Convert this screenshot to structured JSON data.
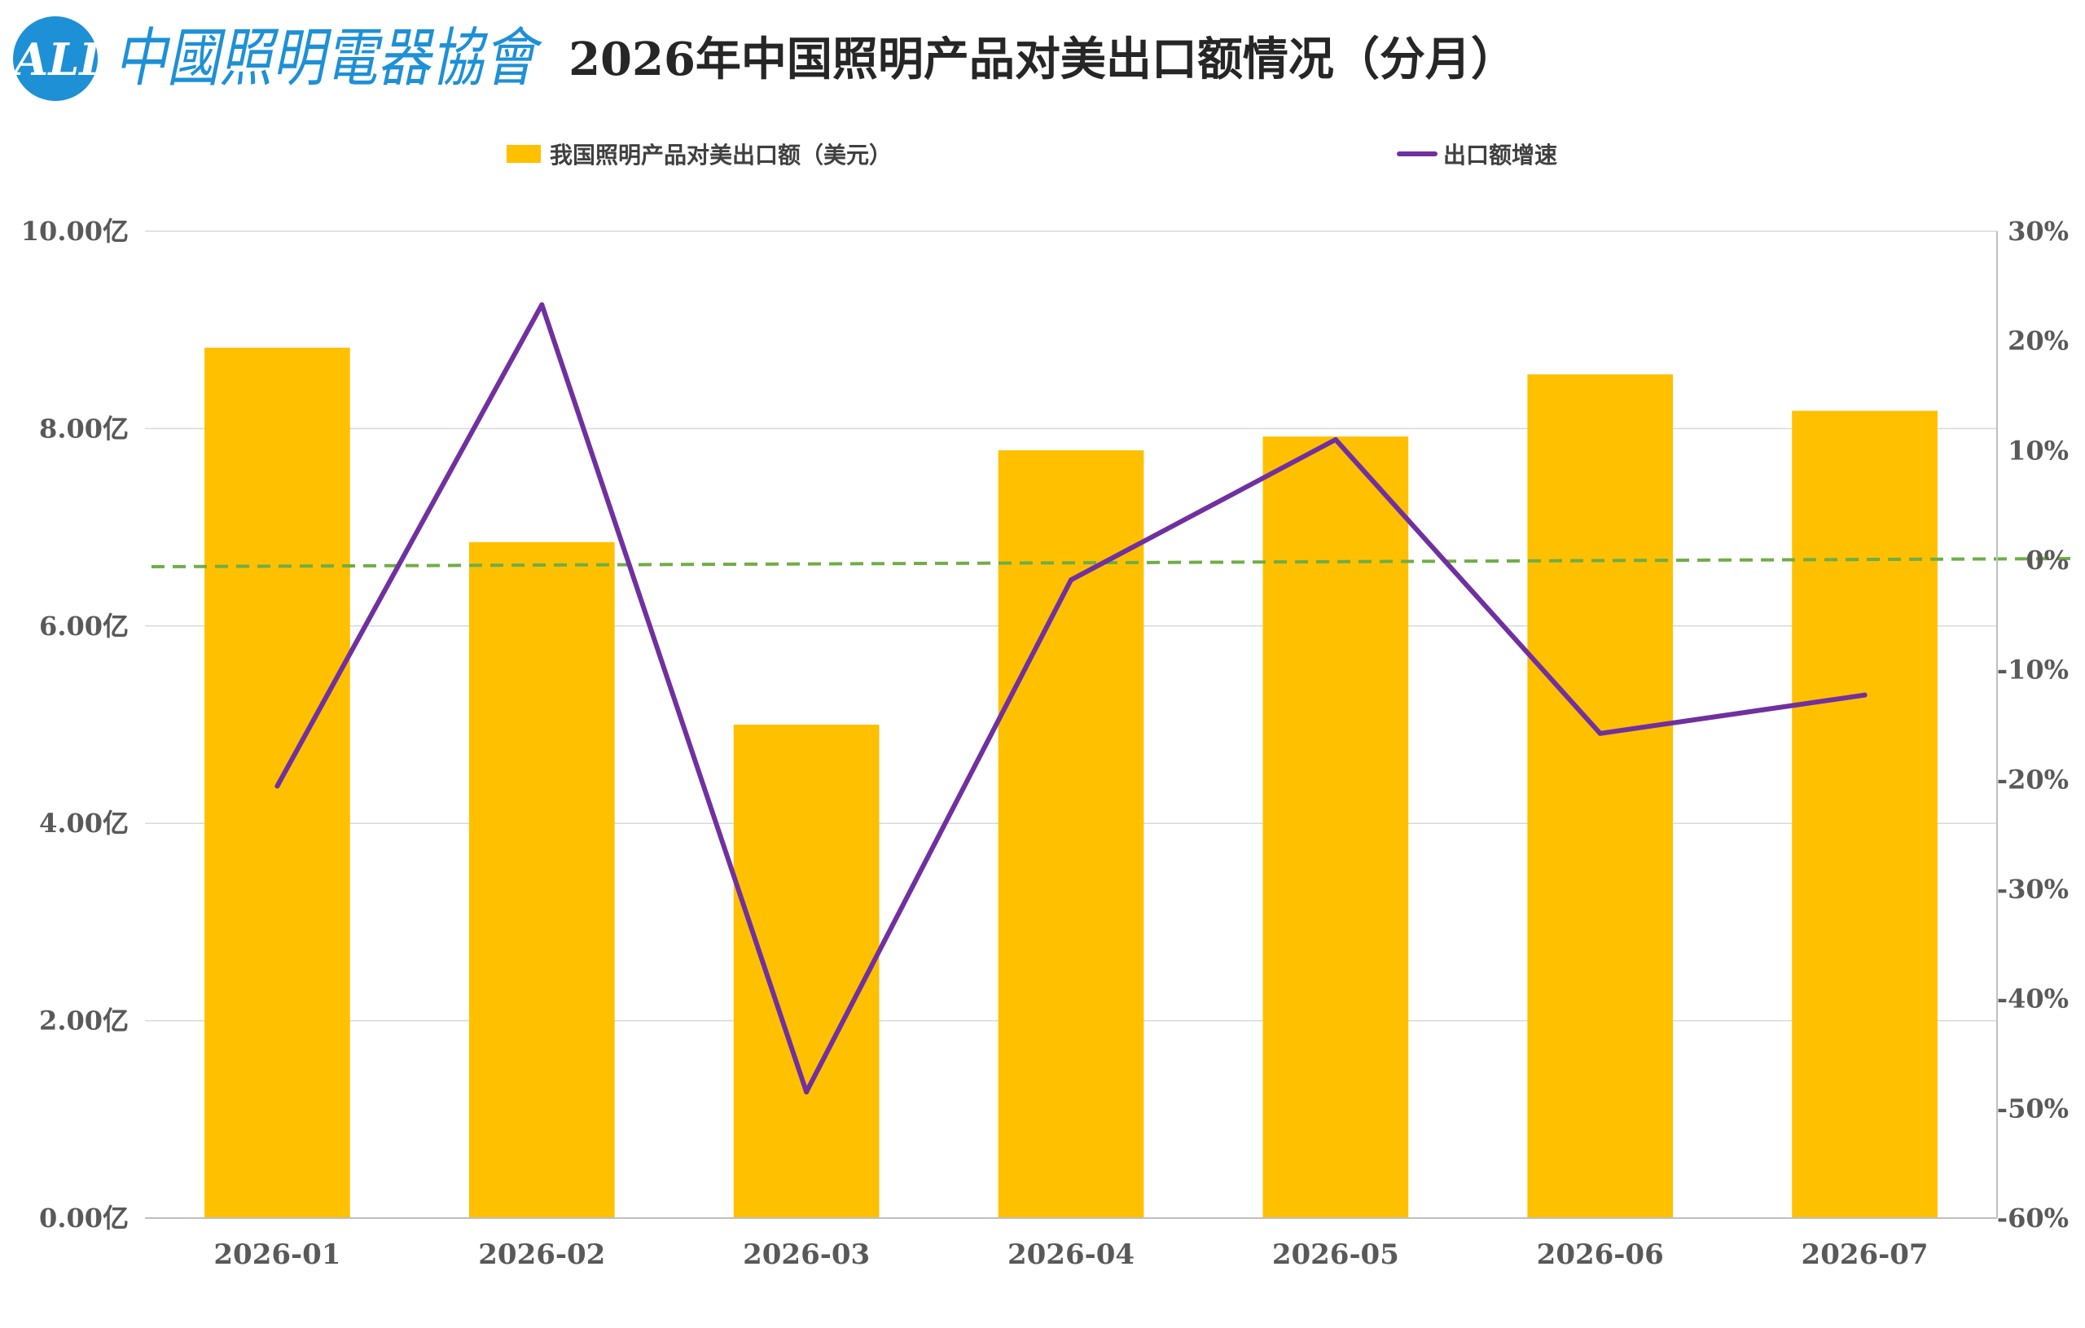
{
  "header": {
    "logo_text": "ALI",
    "logo_name": "中國照明電器協會",
    "title": "2026年中国照明产品对美出口额情况（分月）"
  },
  "colors": {
    "bar": "#FFC000",
    "line": "#7030A0",
    "zero_line": "#70AD47",
    "logo": "#1E90D6",
    "grid": "#D9D9D9",
    "axis_text": "#595959"
  },
  "chart_data": {
    "type": "bar+line",
    "categories": [
      "2026-01",
      "2026-02",
      "2026-03",
      "2026-04",
      "2026-05",
      "2026-06",
      "2026-07"
    ],
    "series": [
      {
        "name": "我国照明产品对美出口额（美元）",
        "type": "bar",
        "axis": "left",
        "values": [
          8.82,
          6.85,
          5.0,
          7.78,
          7.92,
          8.55,
          8.18
        ]
      },
      {
        "name": "出口额增速",
        "type": "line",
        "axis": "right",
        "values": [
          -20.6,
          23.3,
          -48.5,
          -1.8,
          11.0,
          -15.8,
          -12.3
        ]
      }
    ],
    "left_axis": {
      "min": 0,
      "max": 10,
      "ticks": [
        "0.00亿",
        "2.00亿",
        "4.00亿",
        "6.00亿",
        "8.00亿",
        "10.00亿"
      ]
    },
    "right_axis": {
      "min": -60,
      "max": 30,
      "ticks": [
        "-60%",
        "-50%",
        "-40%",
        "-30%",
        "-20%",
        "-10%",
        "0%",
        "10%",
        "20%",
        "30%"
      ]
    },
    "reference_line": {
      "value": 0,
      "axis": "right",
      "style": "dashed"
    },
    "grid": true,
    "legend_position": "top"
  }
}
